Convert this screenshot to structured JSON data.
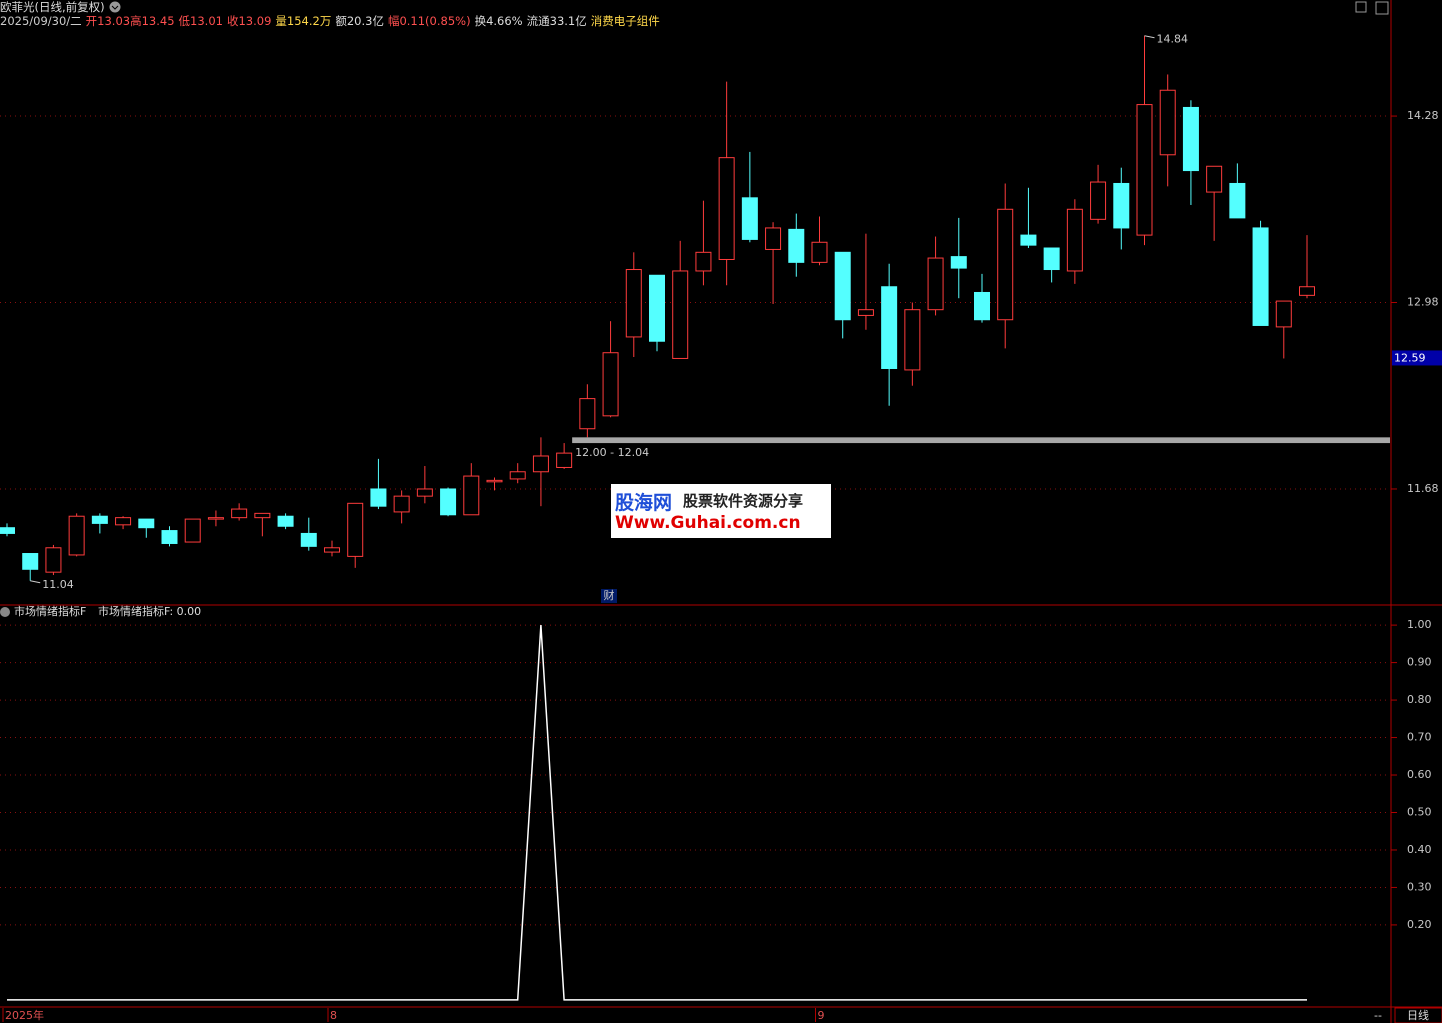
{
  "header": {
    "name": "欧菲光(日线,前复权)",
    "date": "2025/09/30/二",
    "open": "开13.03",
    "high": "高13.45",
    "low": "低13.01",
    "close": "收13.09",
    "volume": "量154.2万",
    "amount": "额20.3亿",
    "change": "幅0.11(0.85%)",
    "turnover": "换4.66%",
    "float": "流通33.1亿",
    "sector": "消费电子组件"
  },
  "chart_data": [
    {
      "type": "candlestick",
      "categories": [
        "2025年",
        null,
        null,
        null,
        null,
        null,
        null,
        null,
        null,
        null,
        null,
        null,
        null,
        null,
        "8",
        null,
        null,
        null,
        null,
        null,
        null,
        null,
        null,
        null,
        null,
        null,
        null,
        null,
        null,
        null,
        null,
        null,
        null,
        null,
        null,
        "9",
        null,
        null,
        null,
        null,
        null,
        null,
        null,
        null,
        null,
        null,
        null,
        null,
        null,
        null,
        null,
        null,
        null,
        null,
        null,
        null,
        null
      ],
      "open": [
        11.41,
        11.23,
        11.1,
        11.22,
        11.49,
        11.43,
        11.47,
        11.39,
        11.31,
        11.47,
        11.48,
        11.48,
        11.49,
        11.37,
        11.24,
        11.21,
        11.68,
        11.52,
        11.63,
        11.68,
        11.5,
        11.73,
        11.75,
        11.8,
        11.83,
        12.1,
        12.19,
        12.74,
        13.17,
        12.59,
        13.2,
        13.28,
        13.71,
        13.35,
        13.49,
        13.26,
        13.33,
        12.89,
        13.09,
        12.51,
        12.93,
        13.3,
        13.05,
        12.86,
        13.45,
        13.36,
        13.2,
        13.56,
        13.81,
        13.45,
        14.01,
        14.34,
        13.75,
        13.81,
        13.5,
        12.81,
        13.03
      ],
      "high": [
        11.44,
        11.23,
        11.29,
        11.51,
        11.51,
        11.49,
        11.47,
        11.42,
        11.47,
        11.53,
        11.58,
        11.51,
        11.51,
        11.48,
        11.32,
        11.58,
        11.89,
        11.67,
        11.84,
        11.69,
        11.86,
        11.76,
        11.86,
        12.04,
        12.0,
        12.41,
        12.85,
        13.33,
        13.17,
        13.41,
        13.69,
        14.52,
        14.03,
        13.54,
        13.6,
        13.58,
        13.33,
        13.46,
        13.25,
        12.98,
        13.44,
        13.57,
        13.18,
        13.81,
        13.78,
        13.36,
        13.7,
        13.94,
        13.92,
        14.84,
        14.57,
        14.39,
        13.93,
        13.95,
        13.55,
        12.99,
        13.45
      ],
      "low": [
        11.35,
        11.04,
        11.08,
        11.21,
        11.37,
        11.4,
        11.34,
        11.28,
        11.31,
        11.42,
        11.46,
        11.35,
        11.4,
        11.25,
        11.21,
        11.13,
        11.54,
        11.44,
        11.58,
        11.49,
        11.5,
        11.67,
        11.72,
        11.56,
        11.82,
        12.04,
        12.18,
        12.6,
        12.64,
        12.59,
        13.1,
        13.1,
        13.4,
        12.97,
        13.16,
        13.24,
        12.73,
        12.79,
        12.26,
        12.4,
        12.89,
        13.01,
        12.84,
        12.66,
        13.36,
        13.12,
        13.11,
        13.53,
        13.35,
        13.38,
        13.79,
        13.66,
        13.41,
        13.57,
        12.82,
        12.59,
        13.01
      ],
      "close": [
        11.37,
        11.12,
        11.27,
        11.49,
        11.44,
        11.48,
        11.41,
        11.3,
        11.47,
        11.48,
        11.54,
        11.51,
        11.42,
        11.28,
        11.27,
        11.58,
        11.56,
        11.63,
        11.68,
        11.5,
        11.77,
        11.74,
        11.8,
        11.91,
        11.93,
        12.31,
        12.63,
        13.21,
        12.71,
        13.2,
        13.33,
        13.99,
        13.42,
        13.5,
        13.26,
        13.4,
        12.86,
        12.93,
        12.52,
        12.93,
        13.29,
        13.22,
        12.86,
        13.63,
        13.38,
        13.21,
        13.63,
        13.82,
        13.5,
        14.36,
        14.46,
        13.9,
        13.93,
        13.57,
        12.82,
        12.99,
        13.09
      ],
      "up_color": "#ff3c3c",
      "down_color": "#54ffff",
      "ylim": [
        10.885,
        14.88
      ],
      "yticks": [
        11.68,
        12.98,
        14.28
      ],
      "grid": true,
      "extreme_labels": [
        14.84,
        11.04
      ],
      "band": {
        "label": "12.00 - 12.04",
        "low": 12.0,
        "high": 12.04
      },
      "current_price": 12.59,
      "marker": "财"
    },
    {
      "type": "line",
      "title": "市场情绪指标F",
      "subtitle": "市场情绪指标F: 0.00",
      "color": "#ffffff",
      "values": [
        0,
        0,
        0,
        0,
        0,
        0,
        0,
        0,
        0,
        0,
        0,
        0,
        0,
        0,
        0,
        0,
        0,
        0,
        0,
        0,
        0,
        0,
        0,
        1,
        0,
        0,
        0,
        0,
        0,
        0,
        0,
        0,
        0,
        0,
        0,
        0,
        0,
        0,
        0,
        0,
        0,
        0,
        0,
        0,
        0,
        0,
        0,
        0,
        0,
        0,
        0,
        0,
        0,
        0,
        0,
        0,
        0
      ],
      "ylim": [
        -0.019,
        1.051
      ],
      "yticks": [
        {
          "value": 0.2,
          "label": "0.20"
        },
        {
          "value": 0.3,
          "label": "0.30"
        },
        {
          "value": 0.4,
          "label": "0.40"
        },
        {
          "value": 0.5,
          "label": "0.50"
        },
        {
          "value": 0.6,
          "label": "0.60"
        },
        {
          "value": 0.7,
          "label": "0.70"
        },
        {
          "value": 0.8,
          "label": "0.80"
        },
        {
          "value": 0.9,
          "label": "0.90"
        },
        {
          "value": 1.0,
          "label": "1.00"
        }
      ],
      "grid": true
    }
  ],
  "footer": {
    "period": "日线",
    "more": "--"
  },
  "watermark": {
    "site": "股海网",
    "slogan": "股票软件资源分享",
    "url": "Www.Guhai.com.cn"
  }
}
